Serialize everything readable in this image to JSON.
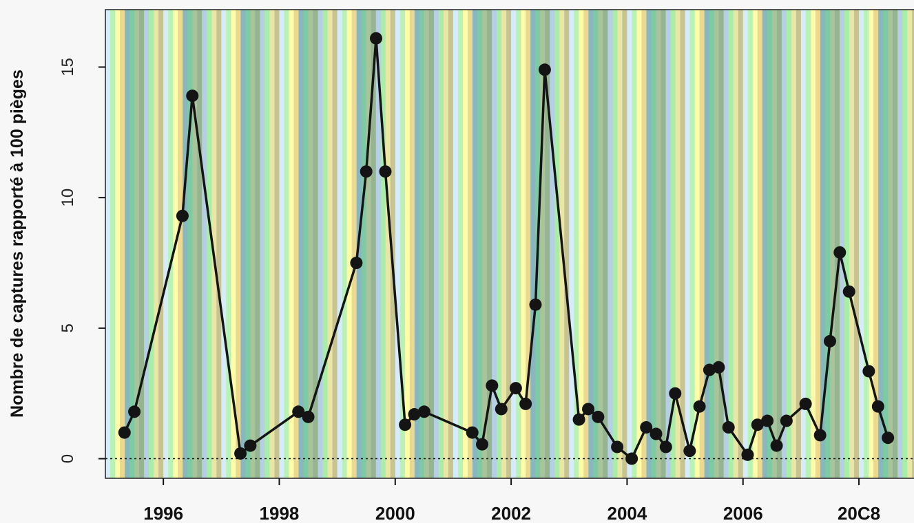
{
  "chart_data": {
    "type": "line",
    "title": "",
    "xlabel": "",
    "ylabel": "Nombre de captures rapporté à 100 pièges",
    "x_tick_labels": [
      "1996",
      "1998",
      "2000",
      "2002",
      "2004",
      "2006",
      "20C8"
    ],
    "x_ticks": [
      1996,
      1998,
      2000,
      2002,
      2004,
      2006,
      2008
    ],
    "y_ticks": [
      0,
      5,
      10,
      15
    ],
    "y_tick_labels": [
      "0",
      "5",
      "10",
      "15"
    ],
    "xlim": [
      1995.0,
      2008.95
    ],
    "ylim": [
      -0.75,
      17.2
    ],
    "reference_line": {
      "y": 0,
      "style": "dotted"
    },
    "background_bands": {
      "start": 1995.0,
      "months_per_band": 1,
      "colors": [
        "#d6ecfa",
        "#b8f2b4",
        "#fdfdaa",
        "#ead98f",
        "#8ab6c0",
        "#7ccba4",
        "#a9c39a",
        "#95b490",
        "#b6cfe4",
        "#a8eda8",
        "#e9e6a6",
        "#c8c491"
      ]
    },
    "series": [
      {
        "color": "#141414",
        "x": [
          1995.33,
          1995.5,
          1996.33,
          1996.5,
          1997.33,
          1997.5,
          1998.33,
          1998.5,
          1999.33,
          1999.5,
          1999.67,
          1999.83,
          2000.17,
          2000.33,
          2000.5,
          2001.33,
          2001.5,
          2001.67,
          2001.83,
          2002.08,
          2002.25,
          2002.42,
          2002.58,
          2003.17,
          2003.33,
          2003.5,
          2003.83,
          2004.08,
          2004.33,
          2004.5,
          2004.67,
          2004.83,
          2005.08,
          2005.25,
          2005.42,
          2005.58,
          2005.75,
          2006.08,
          2006.25,
          2006.42,
          2006.58,
          2006.75,
          2007.08,
          2007.33,
          2007.5,
          2007.67,
          2007.83,
          2008.17,
          2008.33,
          2008.5
        ],
        "values": [
          1.0,
          1.8,
          9.3,
          13.9,
          0.2,
          0.5,
          1.8,
          1.6,
          7.5,
          11.0,
          16.1,
          11.0,
          1.3,
          1.7,
          1.8,
          1.0,
          0.55,
          2.8,
          1.9,
          2.7,
          2.1,
          5.9,
          14.9,
          1.5,
          1.9,
          1.6,
          0.45,
          0.0,
          1.2,
          0.95,
          0.45,
          2.5,
          0.3,
          2.0,
          3.4,
          3.5,
          1.2,
          0.15,
          1.3,
          1.45,
          0.5,
          1.45,
          2.1,
          0.9,
          4.5,
          7.9,
          6.4,
          3.35,
          2.0,
          0.8
        ]
      }
    ]
  }
}
